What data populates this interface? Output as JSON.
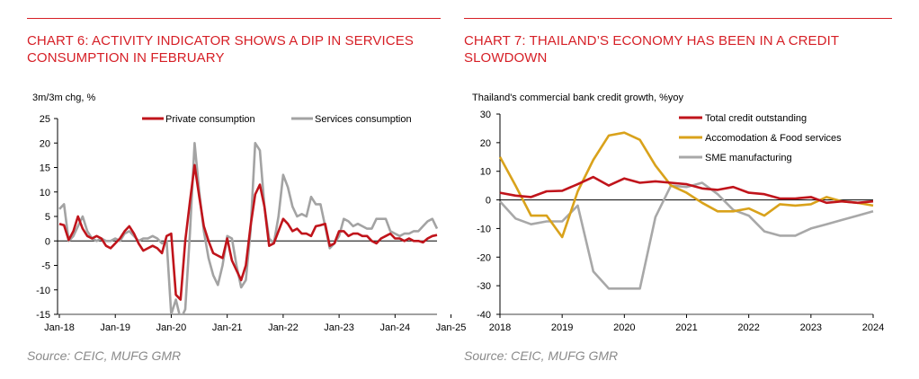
{
  "chart6": {
    "title": "CHART 6: ACTIVITY INDICATOR SHOWS A DIP IN SERVICES CONSUMPTION IN FEBRUARY",
    "ylabel": "3m/3m chg, %",
    "source": "Source: CEIC, MUFG GMR"
  },
  "chart7": {
    "title": "CHART 7: THAILAND’S ECONOMY HAS BEEN IN A CREDIT SLOWDOWN",
    "ylabel": "Thailand's commercial bank credit growth, %yoy",
    "source": "Source: CEIC, MUFG GMR"
  },
  "chart_data": [
    {
      "type": "line",
      "title": "CHART 6: ACTIVITY INDICATOR SHOWS A DIP IN SERVICES CONSUMPTION IN FEBRUARY",
      "ylabel": "3m/3m chg, %",
      "ylim": [
        -15,
        25
      ],
      "yticks": [
        -15,
        -10,
        -5,
        0,
        5,
        10,
        15,
        20,
        25
      ],
      "x_start": "2018-01",
      "x_frequency": "monthly",
      "xtick_labels": [
        "Jan-18",
        "Jan-19",
        "Jan-20",
        "Jan-21",
        "Jan-22",
        "Jan-23",
        "Jan-24",
        "Jan-25"
      ],
      "legend_position": "top",
      "series": [
        {
          "name": "Private consumption",
          "color": "#c0141b",
          "values": [
            3.5,
            3.2,
            0.2,
            2.0,
            5.0,
            2.5,
            1.0,
            0.5,
            1.0,
            0.5,
            -1.0,
            -1.5,
            -0.5,
            0.5,
            2.0,
            3.0,
            1.5,
            -0.5,
            -2.0,
            -1.5,
            -1.0,
            -1.5,
            -2.5,
            1.0,
            1.5,
            -11.0,
            -12.0,
            0.0,
            8.0,
            15.5,
            9.0,
            3.0,
            0.0,
            -2.5,
            -3.0,
            -3.5,
            0.5,
            -4.0,
            -6.0,
            -8.0,
            -5.0,
            3.0,
            9.5,
            11.5,
            7.0,
            -1.0,
            -0.5,
            2.0,
            4.5,
            3.5,
            2.0,
            2.5,
            1.5,
            1.5,
            1.0,
            3.0,
            3.2,
            3.5,
            -1.0,
            -0.5,
            2.0,
            2.0,
            1.0,
            1.5,
            1.5,
            1.0,
            1.0,
            0.0,
            -0.5,
            0.5,
            1.0,
            1.5,
            0.5,
            0.5,
            0.0,
            0.5,
            0.0,
            0.0,
            -0.3,
            0.5,
            1.0,
            1.2
          ]
        },
        {
          "name": "Services consumption",
          "color": "#a3a3a3",
          "values": [
            6.5,
            7.5,
            0.0,
            1.0,
            3.0,
            5.0,
            2.0,
            0.5,
            0.0,
            0.5,
            0.0,
            0.0,
            0.5,
            0.0,
            1.5,
            2.0,
            1.0,
            0.0,
            0.5,
            0.5,
            1.0,
            0.5,
            -0.5,
            0.0,
            -15.0,
            -12.0,
            -16.0,
            -14.0,
            1.5,
            20.0,
            10.0,
            2.0,
            -3.5,
            -7.0,
            -9.0,
            -5.0,
            1.0,
            0.5,
            -5.0,
            -9.5,
            -8.0,
            2.0,
            20.0,
            18.5,
            7.0,
            0.5,
            -0.5,
            5.0,
            13.5,
            11.0,
            7.0,
            5.0,
            5.5,
            5.0,
            9.0,
            7.5,
            7.5,
            3.0,
            -1.5,
            -0.5,
            1.0,
            4.5,
            4.0,
            3.0,
            3.5,
            3.0,
            2.5,
            2.5,
            4.5,
            4.5,
            4.5,
            2.0,
            1.5,
            1.0,
            1.5,
            1.5,
            2.0,
            2.0,
            3.0,
            4.0,
            4.5,
            2.5
          ]
        }
      ]
    },
    {
      "type": "line",
      "title": "CHART 7: THAILAND’S ECONOMY HAS BEEN IN A CREDIT SLOWDOWN",
      "ylabel": "Thailand's commercial bank credit growth, %yoy",
      "ylim": [
        -40,
        30
      ],
      "yticks": [
        -40,
        -30,
        -20,
        -10,
        0,
        10,
        20,
        30
      ],
      "xlim": [
        2018,
        2024
      ],
      "xticks": [
        2018,
        2019,
        2020,
        2021,
        2022,
        2023,
        2024
      ],
      "legend_position": "top-right",
      "series": [
        {
          "name": "Total credit outstanding",
          "color": "#c0141b",
          "x": [
            2018.0,
            2018.25,
            2018.5,
            2018.75,
            2019.0,
            2019.25,
            2019.5,
            2019.75,
            2020.0,
            2020.25,
            2020.5,
            2020.75,
            2021.0,
            2021.25,
            2021.5,
            2021.75,
            2022.0,
            2022.25,
            2022.5,
            2022.75,
            2023.0,
            2023.25,
            2023.5,
            2023.75,
            2024.0
          ],
          "y": [
            2.5,
            1.5,
            1.0,
            3.0,
            3.2,
            5.5,
            8.0,
            5.0,
            7.5,
            6.0,
            6.5,
            6.0,
            5.5,
            4.0,
            3.5,
            4.5,
            2.5,
            2.0,
            0.5,
            0.5,
            1.0,
            -1.0,
            -0.5,
            -1.0,
            -0.5
          ]
        },
        {
          "name": "Accomodation & Food services",
          "color": "#d9a21b",
          "x": [
            2018.0,
            2018.25,
            2018.5,
            2018.75,
            2019.0,
            2019.25,
            2019.5,
            2019.75,
            2020.0,
            2020.25,
            2020.5,
            2020.75,
            2021.0,
            2021.25,
            2021.5,
            2021.75,
            2022.0,
            2022.25,
            2022.5,
            2022.75,
            2023.0,
            2023.25,
            2023.5,
            2023.75,
            2024.0
          ],
          "y": [
            15.0,
            5.0,
            -5.5,
            -5.5,
            -13.0,
            3.0,
            14.0,
            22.5,
            23.5,
            21.0,
            12.0,
            5.0,
            2.5,
            -1.0,
            -4.0,
            -4.0,
            -3.0,
            -5.5,
            -1.5,
            -2.0,
            -1.5,
            1.0,
            -0.5,
            -1.0,
            -2.0
          ]
        },
        {
          "name": "SME manufacturing",
          "color": "#a8a8a8",
          "x": [
            2018.0,
            2018.25,
            2018.5,
            2018.75,
            2019.0,
            2019.25,
            2019.5,
            2019.75,
            2020.0,
            2020.25,
            2020.5,
            2020.75,
            2021.0,
            2021.25,
            2021.5,
            2021.75,
            2022.0,
            2022.25,
            2022.5,
            2022.75,
            2023.0,
            2023.25,
            2023.5,
            2023.75,
            2024.0
          ],
          "y": [
            -0.5,
            -6.5,
            -8.5,
            -7.5,
            -7.5,
            -2.0,
            -25.0,
            -31.0,
            -31.0,
            -31.0,
            -6.0,
            5.0,
            4.5,
            6.0,
            2.0,
            -3.5,
            -5.5,
            -11.0,
            -12.5,
            -12.5,
            -10.0,
            -8.5,
            -7.0,
            -5.5,
            -4.0
          ]
        }
      ]
    }
  ]
}
